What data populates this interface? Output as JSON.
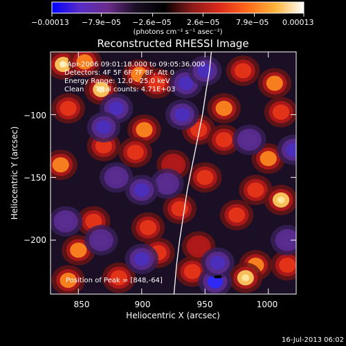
{
  "chart_data": {
    "type": "heatmap",
    "title": "Reconstructed RHESSI Image",
    "xlabel": "Heliocentric X (arcsec)",
    "ylabel": "Heliocentric Y (arcsec)",
    "xlim": [
      828,
      1022
    ],
    "ylim": [
      -243,
      -50
    ],
    "x_ticks": [
      850,
      900,
      950,
      1000
    ],
    "y_ticks": [
      -100,
      -150,
      -200
    ],
    "x_tick_labels": [
      "850",
      "900",
      "950",
      "1000"
    ],
    "y_tick_labels": [
      "−100",
      "−150",
      "−200"
    ],
    "colorbar": {
      "tick_values": [
        -0.00013,
        -7.9e-05,
        -2.6e-05,
        2.6e-05,
        7.9e-05,
        0.00013
      ],
      "tick_labels": [
        "−0.00013",
        "−7.9e−05",
        "−2.6e−05",
        "2.6e−05",
        "7.9e−05",
        "0.00013"
      ],
      "units": "(photons cm⁻² s⁻¹ asec⁻²)",
      "colors": [
        "#0000ff",
        "#5a2cc8",
        "#6a2c8a",
        "#1a0f24",
        "#000000",
        "#8a1a1a",
        "#dd2a1a",
        "#ff6a1a",
        "#ffb43a",
        "#ffffff"
      ]
    },
    "annotations": [
      "8-Apr-2006 09:01:18.000 to 09:05:36.000",
      "Detectors: 4F 5F 6F 7F 8F, Att 0",
      "Energy Range: 12.0 - 25.0 keV",
      "Clean     Total counts: 4.71E+03",
      "Position of Peak = [848,-64]"
    ],
    "limb_curve": [
      {
        "x": 955.0,
        "y": -50
      },
      {
        "x": 953.5,
        "y": -65
      },
      {
        "x": 951.0,
        "y": -80
      },
      {
        "x": 948.0,
        "y": -100
      },
      {
        "x": 944.0,
        "y": -120
      },
      {
        "x": 940.0,
        "y": -140
      },
      {
        "x": 936.0,
        "y": -160
      },
      {
        "x": 933.0,
        "y": -180
      },
      {
        "x": 930.0,
        "y": -200
      },
      {
        "x": 927.5,
        "y": -220
      },
      {
        "x": 925.5,
        "y": -243
      }
    ],
    "blobs": [
      {
        "x": 838,
        "y": -60,
        "v": 1.0
      },
      {
        "x": 855,
        "y": -58,
        "v": 0.8
      },
      {
        "x": 868,
        "y": -80,
        "v": 0.9
      },
      {
        "x": 842,
        "y": -95,
        "v": 0.5
      },
      {
        "x": 898,
        "y": -68,
        "v": 0.7
      },
      {
        "x": 912,
        "y": -75,
        "v": 0.6
      },
      {
        "x": 902,
        "y": -112,
        "v": 0.7
      },
      {
        "x": 895,
        "y": -130,
        "v": 0.6
      },
      {
        "x": 870,
        "y": -125,
        "v": 0.6
      },
      {
        "x": 836,
        "y": -140,
        "v": 0.8
      },
      {
        "x": 862,
        "y": -185,
        "v": 0.6
      },
      {
        "x": 850,
        "y": -208,
        "v": 0.7
      },
      {
        "x": 842,
        "y": -232,
        "v": 0.8
      },
      {
        "x": 882,
        "y": -230,
        "v": 0.6
      },
      {
        "x": 905,
        "y": -190,
        "v": 0.6
      },
      {
        "x": 913,
        "y": -210,
        "v": 0.5
      },
      {
        "x": 930,
        "y": -175,
        "v": 0.5
      },
      {
        "x": 925,
        "y": -140,
        "v": 0.4
      },
      {
        "x": 945,
        "y": -112,
        "v": 0.6
      },
      {
        "x": 965,
        "y": -95,
        "v": 0.7
      },
      {
        "x": 980,
        "y": -65,
        "v": 0.6
      },
      {
        "x": 1005,
        "y": -75,
        "v": 0.8
      },
      {
        "x": 1010,
        "y": -98,
        "v": 0.6
      },
      {
        "x": 1000,
        "y": -135,
        "v": 0.7
      },
      {
        "x": 990,
        "y": -160,
        "v": 0.6
      },
      {
        "x": 1010,
        "y": -168,
        "v": 0.9
      },
      {
        "x": 975,
        "y": -180,
        "v": 0.6
      },
      {
        "x": 965,
        "y": -120,
        "v": 0.6
      },
      {
        "x": 950,
        "y": -150,
        "v": 0.5
      },
      {
        "x": 990,
        "y": -220,
        "v": 0.8
      },
      {
        "x": 982,
        "y": -230,
        "v": 0.9
      },
      {
        "x": 940,
        "y": -225,
        "v": 0.6
      },
      {
        "x": 1015,
        "y": -220,
        "v": 0.5
      },
      {
        "x": 945,
        "y": -205,
        "v": 0.4
      },
      {
        "x": 840,
        "y": -185,
        "v": -0.3
      },
      {
        "x": 880,
        "y": -95,
        "v": -0.5
      },
      {
        "x": 870,
        "y": -110,
        "v": -0.6
      },
      {
        "x": 935,
        "y": -75,
        "v": -0.6
      },
      {
        "x": 950,
        "y": -65,
        "v": -0.5
      },
      {
        "x": 932,
        "y": -100,
        "v": -0.5
      },
      {
        "x": 920,
        "y": -155,
        "v": -0.4
      },
      {
        "x": 900,
        "y": -160,
        "v": -0.5
      },
      {
        "x": 880,
        "y": -150,
        "v": -0.4
      },
      {
        "x": 868,
        "y": -200,
        "v": -0.4
      },
      {
        "x": 900,
        "y": -215,
        "v": -0.5
      },
      {
        "x": 958,
        "y": -233,
        "v": -0.9
      },
      {
        "x": 960,
        "y": -218,
        "v": -0.7
      },
      {
        "x": 1020,
        "y": -128,
        "v": -0.5
      },
      {
        "x": 985,
        "y": -120,
        "v": -0.4
      },
      {
        "x": 1015,
        "y": -200,
        "v": -0.4
      }
    ]
  },
  "footer": {
    "date": "16-Jul-2013 06:02"
  },
  "colors": {
    "background": "#000000",
    "text": "#ffffff",
    "limb": "#ffffff"
  }
}
